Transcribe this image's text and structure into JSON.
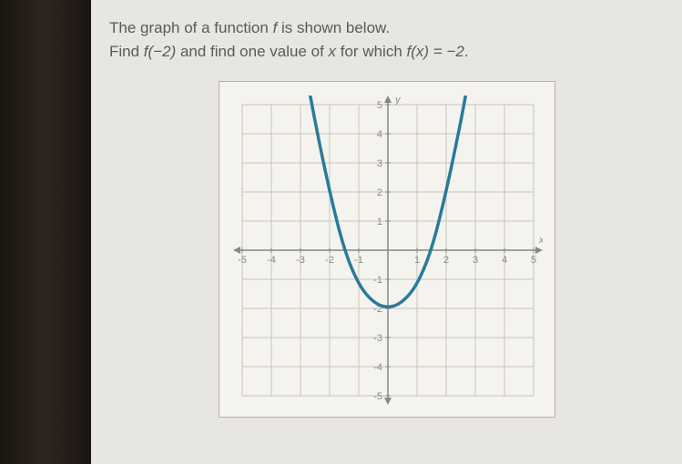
{
  "question": {
    "line1_prefix": "The graph of a function ",
    "line1_func": "f",
    "line1_suffix": " is shown below.",
    "line2_prefix": "Find ",
    "line2_expr1": "f(−2)",
    "line2_mid": " and find one value of ",
    "line2_var": "x",
    "line2_mid2": " for which ",
    "line2_expr2": "f(x) = −2",
    "line2_end": "."
  },
  "chart": {
    "type": "line",
    "xlim": [
      -5,
      5
    ],
    "ylim": [
      -5,
      5
    ],
    "xtick_step": 1,
    "ytick_step": 1,
    "xticks": [
      -5,
      -4,
      -3,
      -2,
      -1,
      1,
      2,
      3,
      4,
      5
    ],
    "yticks": [
      -5,
      -4,
      -3,
      -2,
      -1,
      1,
      2,
      3,
      4,
      5
    ],
    "x_axis_label": "x",
    "y_axis_label": "y",
    "background_color": "#f5f3ee",
    "grid_color": "#c8c4bc",
    "axis_color": "#888888",
    "curve_color": "#2a7a9a",
    "curve_width": 3.5,
    "curve_points": [
      [
        -2.7,
        5.5
      ],
      [
        -2.5,
        4.4
      ],
      [
        -2.0,
        2.0
      ],
      [
        -1.5,
        0.0
      ],
      [
        -1.0,
        -1.2
      ],
      [
        -0.5,
        -1.8
      ],
      [
        0.0,
        -2.0
      ],
      [
        0.5,
        -1.8
      ],
      [
        1.0,
        -1.2
      ],
      [
        1.5,
        0.0
      ],
      [
        2.0,
        2.0
      ],
      [
        2.5,
        4.4
      ],
      [
        2.7,
        5.5
      ]
    ],
    "label_fontsize": 11,
    "label_color": "#888888"
  }
}
